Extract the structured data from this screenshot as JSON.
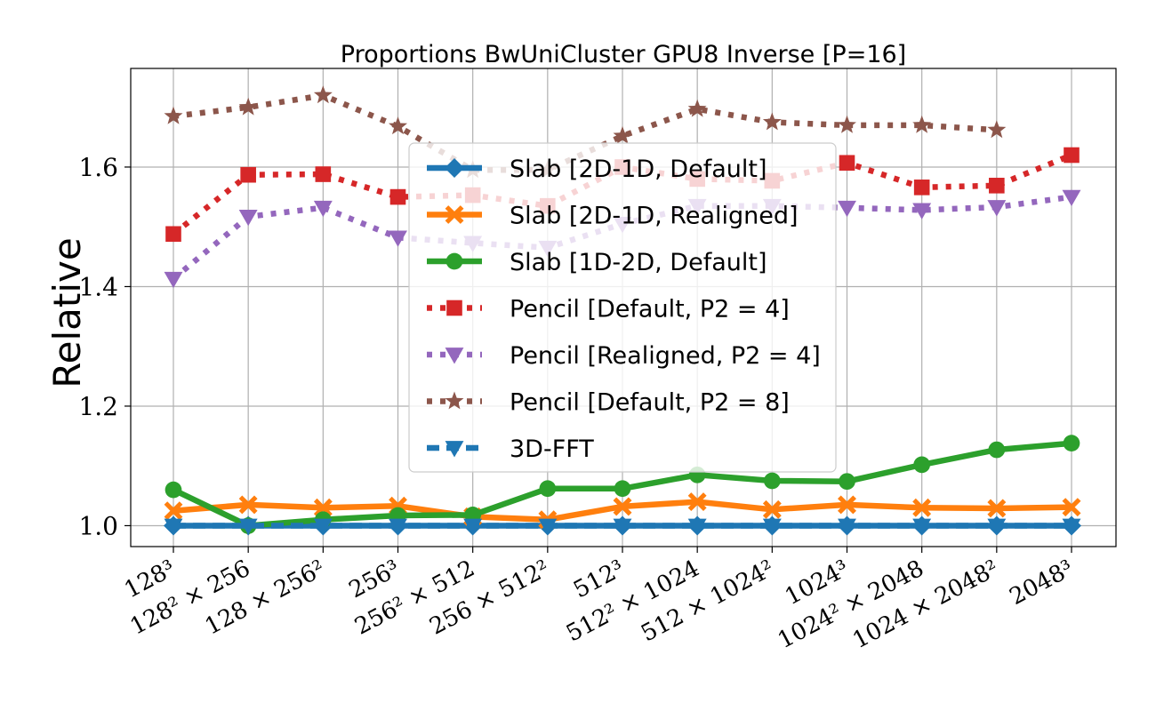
{
  "chart_data": {
    "type": "line",
    "title": "Proportions BwUniCluster GPU8 Inverse [P=16]",
    "xlabel": "",
    "ylabel": "Relative",
    "categories": [
      "128³",
      "128² × 256",
      "128 × 256²",
      "256³",
      "256² × 512",
      "256 × 512²",
      "512³",
      "512² × 1024",
      "512 × 1024²",
      "1024³",
      "1024² × 2048",
      "1024 × 2048²",
      "2048³"
    ],
    "ylim": [
      0.965,
      1.765
    ],
    "yticks": [
      1.0,
      1.2,
      1.4,
      1.6
    ],
    "ytick_labels": [
      "1.0",
      "1.2",
      "1.4",
      "1.6"
    ],
    "grid": true,
    "legend_position": "center",
    "series": [
      {
        "name": "Slab [2D-1D, Default]",
        "color": "#1f77b4",
        "line_style": "solid",
        "marker": "diamond",
        "values": [
          1.0,
          1.0,
          1.0,
          1.0,
          1.0,
          1.0,
          1.0,
          1.0,
          1.0,
          1.0,
          1.0,
          1.0,
          1.0
        ]
      },
      {
        "name": "Slab [2D-1D, Realigned]",
        "color": "#ff7f0e",
        "line_style": "solid",
        "marker": "x-filled",
        "values": [
          1.025,
          1.035,
          1.03,
          1.033,
          1.015,
          1.01,
          1.032,
          1.04,
          1.027,
          1.035,
          1.03,
          1.029,
          1.031
        ]
      },
      {
        "name": "Slab [1D-2D, Default]",
        "color": "#2ca02c",
        "line_style": "solid",
        "marker": "circle",
        "values": [
          1.06,
          1.0,
          1.01,
          1.017,
          1.018,
          1.062,
          1.062,
          1.085,
          1.075,
          1.074,
          1.102,
          1.127,
          1.138
        ]
      },
      {
        "name": "Pencil [Default, P2 = 4]",
        "color": "#d62728",
        "line_style": "dotted",
        "marker": "square",
        "values": [
          1.488,
          1.587,
          1.588,
          1.55,
          1.553,
          1.535,
          1.6,
          1.58,
          1.577,
          1.607,
          1.566,
          1.569,
          1.62
        ]
      },
      {
        "name": "Pencil [Realigned, P2 = 4]",
        "color": "#9467bd",
        "line_style": "dotted",
        "marker": "triangle-down",
        "values": [
          1.413,
          1.517,
          1.532,
          1.482,
          1.473,
          1.465,
          1.505,
          1.535,
          1.535,
          1.532,
          1.528,
          1.533,
          1.55
        ]
      },
      {
        "name": "Pencil [Default, P2 = 8]",
        "color": "#8c564b",
        "line_style": "dotted",
        "marker": "star",
        "values": [
          1.685,
          1.7,
          1.72,
          1.668,
          1.595,
          1.595,
          1.652,
          1.697,
          1.675,
          1.67,
          1.67,
          1.662,
          null
        ]
      },
      {
        "name": "3D-FFT",
        "color": "#1f77b4",
        "line_style": "dashed",
        "marker": "triangle-down",
        "values": [
          1.0,
          1.0,
          1.0,
          1.0,
          1.0,
          1.0,
          1.0,
          1.0,
          1.0,
          1.0,
          1.0,
          1.0,
          1.0
        ]
      }
    ]
  }
}
